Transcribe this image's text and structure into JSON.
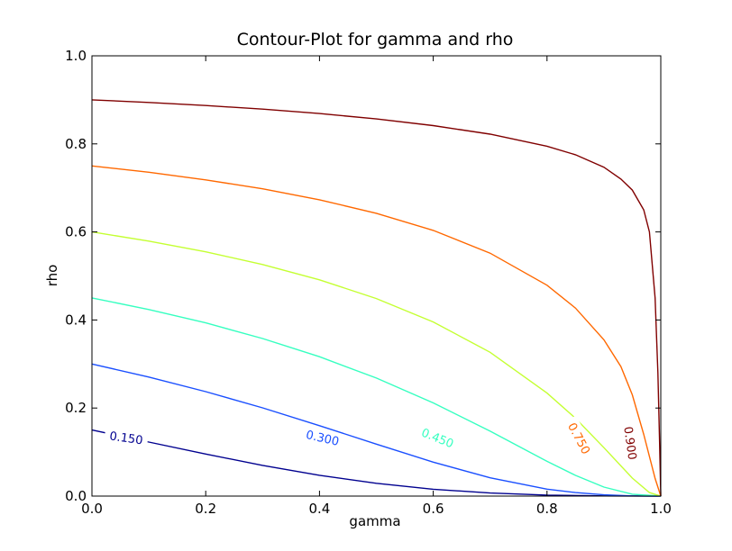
{
  "chart_data": {
    "type": "line",
    "subtype": "contour",
    "title": "Contour-Plot for gamma and rho",
    "xlabel": "gamma",
    "ylabel": "rho",
    "xlim": [
      0.0,
      1.0
    ],
    "ylim": [
      0.0,
      1.0
    ],
    "x_ticks": [
      "0.0",
      "0.2",
      "0.4",
      "0.6",
      "0.8",
      "1.0"
    ],
    "y_ticks": [
      "0.0",
      "0.2",
      "0.4",
      "0.6",
      "0.8",
      "1.0"
    ],
    "grid": false,
    "legend": "none",
    "levels": [
      {
        "label": "0.150",
        "color": "#00008f",
        "label_at": [
          0.06,
          0.13
        ],
        "label_angle": 8,
        "points": [
          [
            0.0,
            0.15
          ],
          [
            0.1,
            0.1227
          ],
          [
            0.2,
            0.0954
          ],
          [
            0.3,
            0.0697
          ],
          [
            0.4,
            0.0472
          ],
          [
            0.5,
            0.029
          ],
          [
            0.6,
            0.0156
          ],
          [
            0.7,
            0.0069
          ],
          [
            0.8,
            0.0022
          ],
          [
            0.9,
            0.0004
          ],
          [
            1.0,
            0.0
          ]
        ]
      },
      {
        "label": "0.300",
        "color": "#1a4fff",
        "label_at": [
          0.405,
          0.13
        ],
        "label_angle": 13,
        "points": [
          [
            0.0,
            0.3
          ],
          [
            0.1,
            0.2703
          ],
          [
            0.2,
            0.2373
          ],
          [
            0.3,
            0.2004
          ],
          [
            0.4,
            0.16
          ],
          [
            0.5,
            0.1179
          ],
          [
            0.6,
            0.077
          ],
          [
            0.7,
            0.0415
          ],
          [
            0.8,
            0.0158
          ],
          [
            0.85,
            0.0079
          ],
          [
            0.9,
            0.0029
          ],
          [
            0.95,
            0.0005
          ],
          [
            1.0,
            0.0
          ]
        ]
      },
      {
        "label": "0.450",
        "color": "#36ffc0",
        "label_at": [
          0.607,
          0.13
        ],
        "label_angle": 22,
        "points": [
          [
            0.0,
            0.45
          ],
          [
            0.1,
            0.4238
          ],
          [
            0.2,
            0.3934
          ],
          [
            0.3,
            0.3579
          ],
          [
            0.4,
            0.3165
          ],
          [
            0.5,
            0.268
          ],
          [
            0.6,
            0.2116
          ],
          [
            0.7,
            0.1474
          ],
          [
            0.8,
            0.079
          ],
          [
            0.85,
            0.0471
          ],
          [
            0.9,
            0.0204
          ],
          [
            0.95,
            0.0042
          ],
          [
            1.0,
            0.0
          ]
        ]
      },
      {
        "label": "",
        "color": "#c4ff32",
        "label_at": null,
        "label_angle": 0,
        "points": [
          [
            0.0,
            0.6
          ],
          [
            0.1,
            0.5792
          ],
          [
            0.2,
            0.5548
          ],
          [
            0.3,
            0.5259
          ],
          [
            0.4,
            0.4912
          ],
          [
            0.5,
            0.4487
          ],
          [
            0.6,
            0.3954
          ],
          [
            0.7,
            0.3266
          ],
          [
            0.8,
            0.234
          ],
          [
            0.85,
            0.1767
          ],
          [
            0.9,
            0.11
          ],
          [
            0.95,
            0.041
          ],
          [
            0.98,
            0.008
          ],
          [
            1.0,
            0.0
          ]
        ]
      },
      {
        "label": "0.750",
        "color": "#ff6800",
        "label_at": [
          0.855,
          0.13
        ],
        "label_angle": 62,
        "points": [
          [
            0.0,
            0.75
          ],
          [
            0.1,
            0.7355
          ],
          [
            0.2,
            0.7183
          ],
          [
            0.3,
            0.6979
          ],
          [
            0.4,
            0.673
          ],
          [
            0.5,
            0.6424
          ],
          [
            0.6,
            0.6034
          ],
          [
            0.7,
            0.5518
          ],
          [
            0.8,
            0.479
          ],
          [
            0.85,
            0.4269
          ],
          [
            0.9,
            0.3551
          ],
          [
            0.93,
            0.294
          ],
          [
            0.95,
            0.23
          ],
          [
            0.97,
            0.14
          ],
          [
            0.99,
            0.04
          ],
          [
            1.0,
            0.0
          ]
        ]
      },
      {
        "label": "0.900",
        "color": "#800000",
        "label_at": [
          0.945,
          0.12
        ],
        "label_angle": 82,
        "points": [
          [
            0.0,
            0.9
          ],
          [
            0.1,
            0.8941
          ],
          [
            0.2,
            0.8872
          ],
          [
            0.3,
            0.8789
          ],
          [
            0.4,
            0.8689
          ],
          [
            0.5,
            0.8567
          ],
          [
            0.6,
            0.8416
          ],
          [
            0.7,
            0.8221
          ],
          [
            0.8,
            0.7947
          ],
          [
            0.85,
            0.7753
          ],
          [
            0.9,
            0.747
          ],
          [
            0.93,
            0.72
          ],
          [
            0.95,
            0.695
          ],
          [
            0.97,
            0.65
          ],
          [
            0.98,
            0.6
          ],
          [
            0.99,
            0.45
          ],
          [
            0.995,
            0.28
          ],
          [
            0.998,
            0.12
          ],
          [
            1.0,
            0.0
          ]
        ]
      }
    ]
  }
}
